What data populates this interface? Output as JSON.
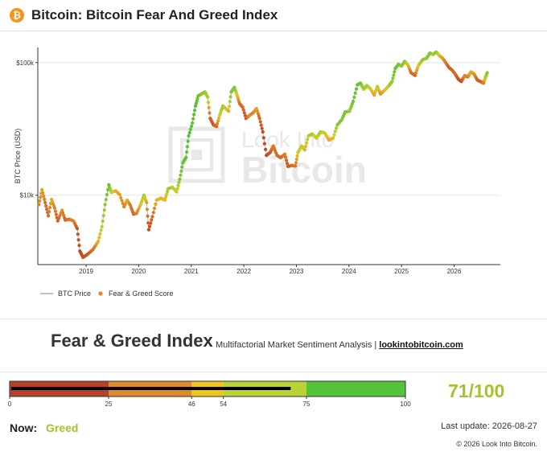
{
  "header": {
    "logo_glyph": "₿",
    "title": "Bitcoin: Bitcoin Fear And Greed Index"
  },
  "watermark": {
    "line1": "Look Into",
    "line2": "Bitcoin"
  },
  "chart_data": {
    "type": "scatter",
    "ylabel": "BTC Price (USD)",
    "y_scale": "log",
    "y_tick_labels": [
      "$10k",
      "$100k"
    ],
    "y_tick_values": [
      10000,
      100000
    ],
    "x_tick_labels": [
      "2019",
      "2020",
      "2021",
      "2022",
      "2023",
      "2024",
      "2025",
      "2026"
    ],
    "xlim": [
      2018.1,
      2026.9
    ],
    "ylim": [
      3000,
      130000
    ],
    "legend": [
      {
        "name": "BTC Price",
        "style": "line"
      },
      {
        "name": "Fear & Greed Score",
        "style": "dot"
      }
    ],
    "series": [
      {
        "name": "Fear & Greed Score",
        "points": [
          {
            "x": 2018.12,
            "y": 8500,
            "s": 30
          },
          {
            "x": 2018.18,
            "y": 11000,
            "s": 40
          },
          {
            "x": 2018.24,
            "y": 8800,
            "s": 25
          },
          {
            "x": 2018.3,
            "y": 7000,
            "s": 22
          },
          {
            "x": 2018.36,
            "y": 9300,
            "s": 45
          },
          {
            "x": 2018.42,
            "y": 8000,
            "s": 30
          },
          {
            "x": 2018.48,
            "y": 6400,
            "s": 20
          },
          {
            "x": 2018.56,
            "y": 7700,
            "s": 35
          },
          {
            "x": 2018.62,
            "y": 6500,
            "s": 22
          },
          {
            "x": 2018.7,
            "y": 6600,
            "s": 28
          },
          {
            "x": 2018.78,
            "y": 6400,
            "s": 32
          },
          {
            "x": 2018.85,
            "y": 5600,
            "s": 15
          },
          {
            "x": 2018.9,
            "y": 3800,
            "s": 10
          },
          {
            "x": 2018.96,
            "y": 3400,
            "s": 12
          },
          {
            "x": 2019.05,
            "y": 3600,
            "s": 15
          },
          {
            "x": 2019.15,
            "y": 3900,
            "s": 25
          },
          {
            "x": 2019.25,
            "y": 4500,
            "s": 45
          },
          {
            "x": 2019.32,
            "y": 5800,
            "s": 60
          },
          {
            "x": 2019.38,
            "y": 8500,
            "s": 72
          },
          {
            "x": 2019.45,
            "y": 12000,
            "s": 85
          },
          {
            "x": 2019.5,
            "y": 10500,
            "s": 60
          },
          {
            "x": 2019.58,
            "y": 10800,
            "s": 45
          },
          {
            "x": 2019.66,
            "y": 10100,
            "s": 40
          },
          {
            "x": 2019.74,
            "y": 8200,
            "s": 30
          },
          {
            "x": 2019.8,
            "y": 9200,
            "s": 45
          },
          {
            "x": 2019.86,
            "y": 8400,
            "s": 30
          },
          {
            "x": 2019.92,
            "y": 7200,
            "s": 22
          },
          {
            "x": 2019.98,
            "y": 7300,
            "s": 30
          },
          {
            "x": 2020.06,
            "y": 8600,
            "s": 50
          },
          {
            "x": 2020.12,
            "y": 10000,
            "s": 62
          },
          {
            "x": 2020.17,
            "y": 8800,
            "s": 40
          },
          {
            "x": 2020.21,
            "y": 5500,
            "s": 10
          },
          {
            "x": 2020.28,
            "y": 6900,
            "s": 22
          },
          {
            "x": 2020.36,
            "y": 9200,
            "s": 45
          },
          {
            "x": 2020.44,
            "y": 9500,
            "s": 48
          },
          {
            "x": 2020.52,
            "y": 9200,
            "s": 45
          },
          {
            "x": 2020.58,
            "y": 11200,
            "s": 68
          },
          {
            "x": 2020.66,
            "y": 11500,
            "s": 62
          },
          {
            "x": 2020.74,
            "y": 10600,
            "s": 50
          },
          {
            "x": 2020.8,
            "y": 13200,
            "s": 75
          },
          {
            "x": 2020.86,
            "y": 17500,
            "s": 85
          },
          {
            "x": 2020.92,
            "y": 19300,
            "s": 88
          },
          {
            "x": 2020.97,
            "y": 28000,
            "s": 92
          },
          {
            "x": 2021.04,
            "y": 35000,
            "s": 88
          },
          {
            "x": 2021.1,
            "y": 47000,
            "s": 92
          },
          {
            "x": 2021.15,
            "y": 56000,
            "s": 85
          },
          {
            "x": 2021.21,
            "y": 58000,
            "s": 75
          },
          {
            "x": 2021.28,
            "y": 60000,
            "s": 70
          },
          {
            "x": 2021.33,
            "y": 55000,
            "s": 62
          },
          {
            "x": 2021.38,
            "y": 38000,
            "s": 20
          },
          {
            "x": 2021.44,
            "y": 34000,
            "s": 15
          },
          {
            "x": 2021.5,
            "y": 33000,
            "s": 22
          },
          {
            "x": 2021.56,
            "y": 40000,
            "s": 55
          },
          {
            "x": 2021.62,
            "y": 47000,
            "s": 70
          },
          {
            "x": 2021.68,
            "y": 45000,
            "s": 50
          },
          {
            "x": 2021.73,
            "y": 43000,
            "s": 45
          },
          {
            "x": 2021.78,
            "y": 60000,
            "s": 75
          },
          {
            "x": 2021.84,
            "y": 65000,
            "s": 78
          },
          {
            "x": 2021.89,
            "y": 57000,
            "s": 50
          },
          {
            "x": 2021.94,
            "y": 49000,
            "s": 25
          },
          {
            "x": 2022.0,
            "y": 46000,
            "s": 22
          },
          {
            "x": 2022.06,
            "y": 38000,
            "s": 15
          },
          {
            "x": 2022.13,
            "y": 40000,
            "s": 35
          },
          {
            "x": 2022.2,
            "y": 42000,
            "s": 30
          },
          {
            "x": 2022.26,
            "y": 45000,
            "s": 40
          },
          {
            "x": 2022.32,
            "y": 38000,
            "s": 22
          },
          {
            "x": 2022.38,
            "y": 30000,
            "s": 10
          },
          {
            "x": 2022.45,
            "y": 20000,
            "s": 8
          },
          {
            "x": 2022.52,
            "y": 21000,
            "s": 15
          },
          {
            "x": 2022.58,
            "y": 23500,
            "s": 30
          },
          {
            "x": 2022.65,
            "y": 20000,
            "s": 22
          },
          {
            "x": 2022.72,
            "y": 19200,
            "s": 22
          },
          {
            "x": 2022.8,
            "y": 20400,
            "s": 30
          },
          {
            "x": 2022.86,
            "y": 16500,
            "s": 15
          },
          {
            "x": 2022.94,
            "y": 16800,
            "s": 25
          },
          {
            "x": 2023.0,
            "y": 16600,
            "s": 28
          },
          {
            "x": 2023.05,
            "y": 21000,
            "s": 52
          },
          {
            "x": 2023.12,
            "y": 23500,
            "s": 58
          },
          {
            "x": 2023.18,
            "y": 22000,
            "s": 45
          },
          {
            "x": 2023.25,
            "y": 28000,
            "s": 60
          },
          {
            "x": 2023.32,
            "y": 29000,
            "s": 62
          },
          {
            "x": 2023.4,
            "y": 27000,
            "s": 50
          },
          {
            "x": 2023.48,
            "y": 30000,
            "s": 65
          },
          {
            "x": 2023.56,
            "y": 29500,
            "s": 55
          },
          {
            "x": 2023.64,
            "y": 26000,
            "s": 42
          },
          {
            "x": 2023.72,
            "y": 27000,
            "s": 48
          },
          {
            "x": 2023.8,
            "y": 34000,
            "s": 72
          },
          {
            "x": 2023.88,
            "y": 37000,
            "s": 75
          },
          {
            "x": 2023.95,
            "y": 42500,
            "s": 78
          },
          {
            "x": 2024.03,
            "y": 43000,
            "s": 70
          },
          {
            "x": 2024.1,
            "y": 51000,
            "s": 80
          },
          {
            "x": 2024.18,
            "y": 68000,
            "s": 88
          },
          {
            "x": 2024.24,
            "y": 70000,
            "s": 82
          },
          {
            "x": 2024.3,
            "y": 63000,
            "s": 60
          },
          {
            "x": 2024.36,
            "y": 67000,
            "s": 70
          },
          {
            "x": 2024.42,
            "y": 64000,
            "s": 55
          },
          {
            "x": 2024.5,
            "y": 57000,
            "s": 40
          },
          {
            "x": 2024.56,
            "y": 66000,
            "s": 62
          },
          {
            "x": 2024.62,
            "y": 58000,
            "s": 35
          },
          {
            "x": 2024.7,
            "y": 62000,
            "s": 48
          },
          {
            "x": 2024.78,
            "y": 67000,
            "s": 62
          },
          {
            "x": 2024.84,
            "y": 72000,
            "s": 72
          },
          {
            "x": 2024.9,
            "y": 90000,
            "s": 85
          },
          {
            "x": 2024.96,
            "y": 97000,
            "s": 80
          },
          {
            "x": 2025.02,
            "y": 94000,
            "s": 70
          },
          {
            "x": 2025.08,
            "y": 102000,
            "s": 75
          },
          {
            "x": 2025.14,
            "y": 96000,
            "s": 50
          },
          {
            "x": 2025.2,
            "y": 84000,
            "s": 25
          },
          {
            "x": 2025.28,
            "y": 80000,
            "s": 22
          },
          {
            "x": 2025.34,
            "y": 95000,
            "s": 55
          },
          {
            "x": 2025.42,
            "y": 105000,
            "s": 70
          },
          {
            "x": 2025.5,
            "y": 108000,
            "s": 70
          },
          {
            "x": 2025.56,
            "y": 118000,
            "s": 75
          },
          {
            "x": 2025.62,
            "y": 115000,
            "s": 62
          },
          {
            "x": 2025.68,
            "y": 120000,
            "s": 72
          },
          {
            "x": 2025.74,
            "y": 113000,
            "s": 50
          },
          {
            "x": 2025.8,
            "y": 108000,
            "s": 40
          },
          {
            "x": 2025.86,
            "y": 100000,
            "s": 30
          },
          {
            "x": 2025.92,
            "y": 92000,
            "s": 20
          },
          {
            "x": 2025.98,
            "y": 88000,
            "s": 22
          },
          {
            "x": 2026.04,
            "y": 82000,
            "s": 25
          },
          {
            "x": 2026.1,
            "y": 75000,
            "s": 15
          },
          {
            "x": 2026.16,
            "y": 72000,
            "s": 12
          },
          {
            "x": 2026.22,
            "y": 80000,
            "s": 35
          },
          {
            "x": 2026.28,
            "y": 78000,
            "s": 30
          },
          {
            "x": 2026.34,
            "y": 85000,
            "s": 45
          },
          {
            "x": 2026.4,
            "y": 82000,
            "s": 38
          },
          {
            "x": 2026.46,
            "y": 74000,
            "s": 20
          },
          {
            "x": 2026.52,
            "y": 72000,
            "s": 18
          },
          {
            "x": 2026.58,
            "y": 70000,
            "s": 25
          },
          {
            "x": 2026.62,
            "y": 78000,
            "s": 62
          },
          {
            "x": 2026.65,
            "y": 84000,
            "s": 71
          }
        ]
      }
    ]
  },
  "fear_greed": {
    "title": "Fear & Greed Index",
    "subtitle": "Multifactorial Market Sentiment Analysis",
    "separator": "|",
    "link": "lookintobitcoin.com"
  },
  "gauge": {
    "min": 0,
    "max": 100,
    "value": 71,
    "boundaries": [
      0,
      25,
      46,
      54,
      75,
      100
    ],
    "boundary_labels": [
      "0",
      "25",
      "46",
      "54",
      "75",
      "100"
    ],
    "colors": [
      "#b9412a",
      "#e08a2b",
      "#f2c41c",
      "#b8d334",
      "#54c43c"
    ],
    "score_text": "71/100"
  },
  "status": {
    "now_label": "Now:",
    "now_value": "Greed",
    "last_update": "Last update: 2026-08-27",
    "copyright": "© 2026 Look Into Bitcoin."
  }
}
